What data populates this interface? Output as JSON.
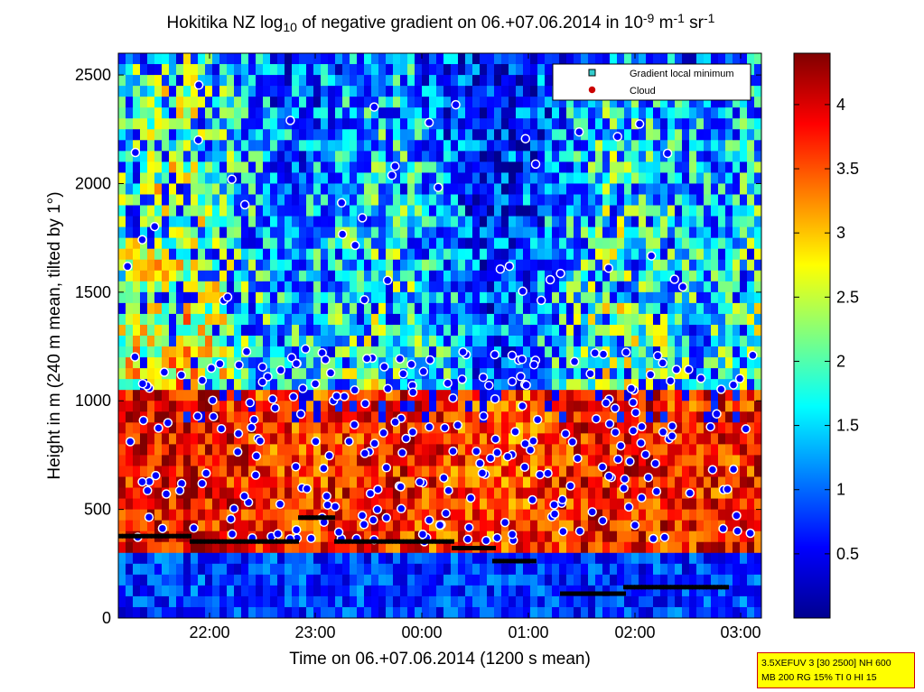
{
  "chart_data": {
    "type": "heatmap",
    "title_parts": {
      "main": "Hokitika NZ log",
      "sub": "10",
      "mid": " of negative gradient on 06.+07.06.2014 in 10",
      "sup1": "-9",
      "mid2": " m",
      "sup2": "-1",
      "mid3": " sr",
      "sup3": "-1"
    },
    "xlabel": "Time on 06.+07.06.2014 (1200 s mean)",
    "ylabel": "Height in m (240 m mean, tilted by 1°)",
    "x_ticks": [
      "22:00",
      "23:00",
      "00:00",
      "01:00",
      "02:00",
      "03:00"
    ],
    "y_ticks": [
      "0",
      "500",
      "1000",
      "1500",
      "2000",
      "2500"
    ],
    "ylim": [
      0,
      2600
    ],
    "colorbar": {
      "range": [
        0,
        4.4
      ],
      "ticks": [
        "0.5",
        "1",
        "1.5",
        "2",
        "2.5",
        "3",
        "3.5",
        "4"
      ],
      "colormap": "jet"
    },
    "legend": {
      "placement": "top-right",
      "entries": [
        {
          "name": "Gradient local minimum",
          "marker": "square",
          "color": "#33cccc"
        },
        {
          "name": "Cloud",
          "marker": "circle",
          "color": "#cc0000"
        }
      ]
    },
    "colors": {
      "background_low": "#00008f",
      "cloud_marker": "#0000ff",
      "minimum_marker": "#000000"
    }
  },
  "info_box": {
    "line1": "3.5XEFUV 3 [30 2500] NH 600",
    "line2": "MB 200 RG 15% TI 0 HI 15"
  }
}
